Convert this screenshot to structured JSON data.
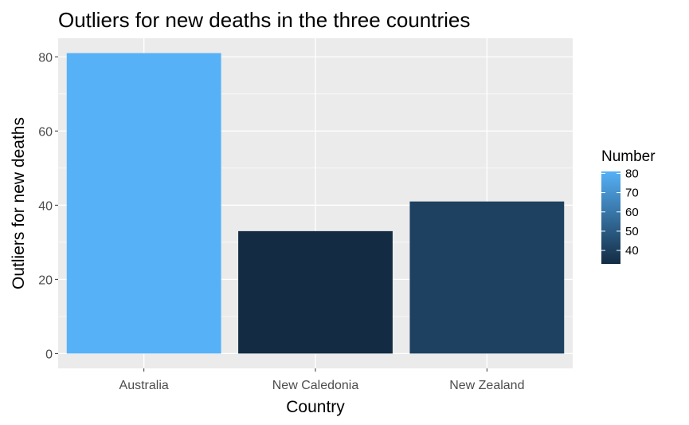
{
  "chart_data": {
    "type": "bar",
    "title": "Outliers for new deaths in the three countries",
    "xlabel": "Country",
    "ylabel": "Outliers for new deaths",
    "categories": [
      "Australia",
      "New Caledonia",
      "New Zealand"
    ],
    "values": [
      81,
      33,
      41
    ],
    "ylim": [
      -4,
      85
    ],
    "yticks": [
      0,
      20,
      40,
      60,
      80
    ],
    "grid": true,
    "legend": {
      "title": "Number",
      "placement": "right",
      "ticks": [
        40,
        50,
        60,
        70,
        80
      ],
      "range": [
        33,
        81
      ],
      "low_color": "#132B43",
      "high_color": "#56B1F7"
    },
    "panel_background": "#EBEBEB"
  }
}
